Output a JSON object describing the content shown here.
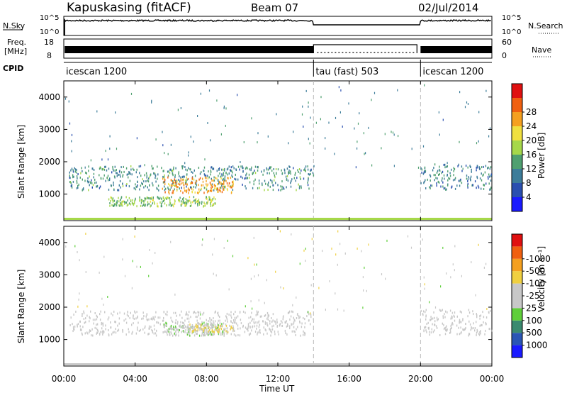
{
  "header": {
    "station": "Kapuskasing (fitACF)",
    "beam": "Beam 07",
    "date": "02/Jul/2014"
  },
  "strip_labels": {
    "nsky": "N.Sky",
    "nsky_ticks": [
      "10^5",
      "10^0"
    ],
    "nsearch": "N.Search",
    "nsearch_ticks": [
      "10^5",
      "10^0"
    ],
    "freq": "Freq.",
    "freq_unit": "[MHz]",
    "freq_ticks": [
      "18",
      "8"
    ],
    "nave": "Nave",
    "nave_ticks": [
      "60",
      "0"
    ],
    "cpid": "CPID"
  },
  "cpid_segments": [
    {
      "start_hour": 0,
      "end_hour": 14,
      "label": "icescan 1200"
    },
    {
      "start_hour": 14,
      "end_hour": 20,
      "label": "tau (fast) 503"
    },
    {
      "start_hour": 20,
      "end_hour": 24,
      "label": "icescan 1200"
    }
  ],
  "axes": {
    "ylabel": "Slant Range [km]",
    "yticks": [
      "1000",
      "2000",
      "3000",
      "4000"
    ],
    "xlabel": "Time UT",
    "xticks": [
      "00:00",
      "04:00",
      "08:00",
      "12:00",
      "16:00",
      "20:00",
      "00:00"
    ]
  },
  "power_scale": {
    "title": "Power [dB]",
    "labels": [
      "4",
      "8",
      "12",
      "16",
      "20",
      "24",
      "28"
    ],
    "colors": [
      "#1a1aff",
      "#2a4fb0",
      "#3d7d9a",
      "#4fa070",
      "#a6d84a",
      "#f0e040",
      "#f5a020",
      "#f06010",
      "#e01010"
    ]
  },
  "velocity_scale": {
    "title": "Velocity [m s⁻¹]",
    "labels": [
      "1000",
      "500",
      "100",
      "25",
      "-25",
      "-100",
      "-500",
      "-1000"
    ],
    "colors": [
      "#1a1aff",
      "#2a55b5",
      "#3a8a70",
      "#5fcf3a",
      "#c8c8c8",
      "#c8c8c8",
      "#f0d040",
      "#f5a020",
      "#f06010",
      "#e01010"
    ]
  },
  "chart_data": [
    {
      "type": "heatmap",
      "title": "Power [dB]",
      "xlabel": "Time UT",
      "ylabel": "Slant Range [km]",
      "xlim": [
        "00:00",
        "24:00"
      ],
      "ylim": [
        180,
        4500
      ],
      "color_range": [
        0,
        30
      ],
      "echo_regions": [
        {
          "t_start": 0.3,
          "t_end": 14.0,
          "r_low": 1150,
          "r_high": 1900,
          "power": 10
        },
        {
          "t_start": 5.5,
          "t_end": 9.5,
          "r_low": 1050,
          "r_high": 1550,
          "power": 22
        },
        {
          "t_start": 2.5,
          "t_end": 8.5,
          "r_low": 650,
          "r_high": 950,
          "power": 14
        },
        {
          "t_start": 20.0,
          "t_end": 24.0,
          "r_low": 1150,
          "r_high": 1950,
          "power": 9
        }
      ]
    },
    {
      "type": "heatmap",
      "title": "Velocity [m s⁻¹]",
      "xlabel": "Time UT",
      "ylabel": "Slant Range [km]",
      "xlim": [
        "00:00",
        "24:00"
      ],
      "ylim": [
        180,
        4500
      ],
      "color_range": [
        -1000,
        1000
      ],
      "echo_regions": [
        {
          "t_start": 0.3,
          "t_end": 14.0,
          "r_low": 1150,
          "r_high": 1900,
          "velocity": 0
        },
        {
          "t_start": 5.5,
          "t_end": 9.0,
          "r_low": 1150,
          "r_high": 1550,
          "velocity": 150
        },
        {
          "t_start": 7.0,
          "t_end": 9.5,
          "r_low": 1250,
          "r_high": 1500,
          "velocity": -200
        },
        {
          "t_start": 20.0,
          "t_end": 24.0,
          "r_low": 1150,
          "r_high": 1950,
          "velocity": 0
        }
      ]
    }
  ]
}
